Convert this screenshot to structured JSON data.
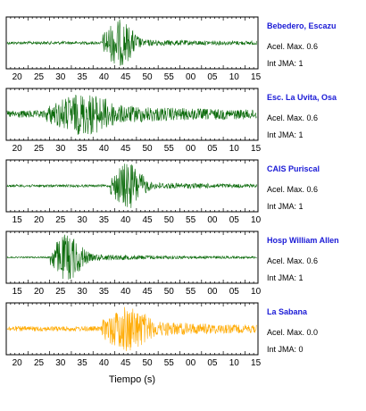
{
  "xlabel": "Tiempo (s)",
  "chart_data": [
    {
      "type": "line",
      "station": "Bebedero, Escazu",
      "accel_text": "Acel. Max. 0.6",
      "jma_text": "Int JMA: 1",
      "color": "#0a6a0a",
      "tick_labels": [
        "20",
        "25",
        "30",
        "35",
        "40",
        "45",
        "50",
        "55",
        "00",
        "05",
        "10",
        "15"
      ],
      "tick_start_s": 20,
      "shape": {
        "noise": 0.06,
        "peak_center": 26,
        "peak_width": 4,
        "peak_amp": 0.95,
        "coda": 0.1
      }
    },
    {
      "type": "line",
      "station": "Esc. La Uvita, Osa",
      "accel_text": "Acel. Max. 0.6",
      "jma_text": "Int JMA: 1",
      "color": "#0a6a0a",
      "tick_labels": [
        "20",
        "25",
        "30",
        "35",
        "40",
        "45",
        "50",
        "55",
        "00",
        "05",
        "10",
        "15"
      ],
      "tick_start_s": 20,
      "shape": {
        "noise": 0.15,
        "peak_center": 18,
        "peak_width": 9,
        "peak_amp": 0.85,
        "coda": 0.35
      }
    },
    {
      "type": "line",
      "station": "CAIS Puriscal",
      "accel_text": "Acel. Max. 0.6",
      "jma_text": "Int JMA: 1",
      "color": "#0a6a0a",
      "tick_labels": [
        "15",
        "20",
        "25",
        "30",
        "35",
        "40",
        "45",
        "50",
        "55",
        "00",
        "05",
        "10"
      ],
      "tick_start_s": 15,
      "shape": {
        "noise": 0.05,
        "peak_center": 28,
        "peak_width": 4,
        "peak_amp": 0.95,
        "coda": 0.12
      }
    },
    {
      "type": "line",
      "station": "Hosp William Allen",
      "accel_text": "Acel. Max. 0.6",
      "jma_text": "Int JMA: 1",
      "color": "#0a6a0a",
      "tick_labels": [
        "15",
        "20",
        "25",
        "30",
        "35",
        "40",
        "45",
        "50",
        "55",
        "00",
        "05",
        "10"
      ],
      "tick_start_s": 15,
      "shape": {
        "noise": 0.03,
        "peak_center": 14,
        "peak_width": 4,
        "peak_amp": 0.95,
        "coda": 0.15
      }
    },
    {
      "type": "line",
      "station": "La Sabana",
      "accel_text": "Acel. Max. 0.0",
      "jma_text": "Int JMA: 0",
      "color": "#ffaa00",
      "tick_labels": [
        "20",
        "25",
        "30",
        "35",
        "40",
        "45",
        "50",
        "55",
        "00",
        "05",
        "10",
        "15"
      ],
      "tick_start_s": 20,
      "shape": {
        "noise": 0.1,
        "peak_center": 28,
        "peak_width": 6,
        "peak_amp": 0.95,
        "coda": 0.3
      }
    }
  ]
}
